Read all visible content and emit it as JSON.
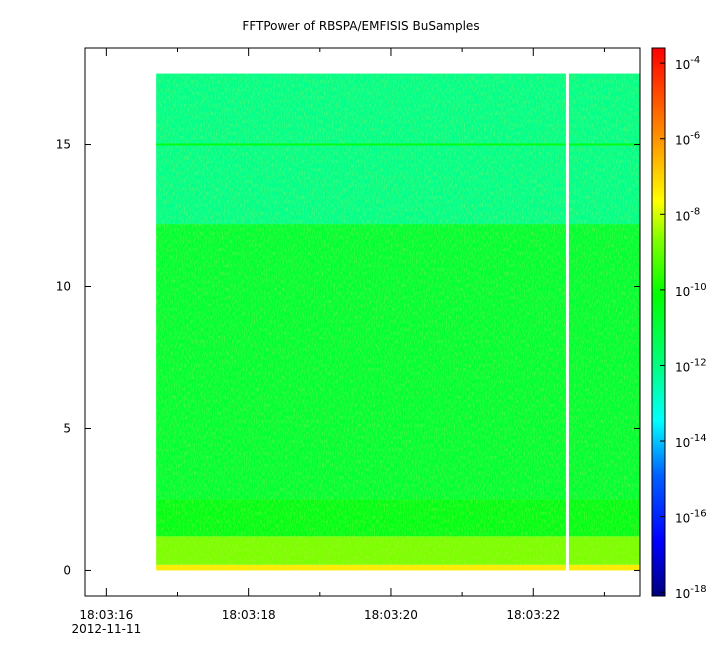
{
  "chart_data": {
    "type": "heatmap",
    "title": "FFTPower of RBSPA/EMFISIS  BuSamples",
    "xlabel": "",
    "ylabel": "",
    "x": {
      "ticks": [
        "18:03:16",
        "18:03:18",
        "18:03:20",
        "18:03:22"
      ],
      "tick_values_s": [
        16,
        18,
        20,
        22
      ],
      "minor_tick_values_s": [
        17,
        19,
        21,
        23
      ],
      "date_label": "2012-11-11",
      "range_s": [
        15.7,
        23.5
      ],
      "data_range_s": [
        16.7,
        23.5
      ],
      "gap_s": 22.48
    },
    "y": {
      "ticks": [
        "0",
        "5",
        "10",
        "15"
      ],
      "tick_values": [
        0,
        5,
        10,
        15
      ],
      "range": [
        -0.9,
        18.4
      ],
      "data_range": [
        0,
        17.5
      ]
    },
    "colorbar": {
      "scale": "log",
      "ticks": [
        {
          "base": "10",
          "exp": "-4"
        },
        {
          "base": "10",
          "exp": "-6"
        },
        {
          "base": "10",
          "exp": "-8"
        },
        {
          "base": "10",
          "exp": "-10"
        },
        {
          "base": "10",
          "exp": "-12"
        },
        {
          "base": "10",
          "exp": "-14"
        },
        {
          "base": "10",
          "exp": "-16"
        },
        {
          "base": "10",
          "exp": "-18"
        }
      ],
      "tick_exponents": [
        -4,
        -6,
        -8,
        -10,
        -12,
        -14,
        -16,
        -18
      ],
      "range_exp": [
        -18.1,
        -3.6
      ],
      "colormap": [
        "#00007f",
        "#0000ff",
        "#00bfff",
        "#00ffff",
        "#00ff80",
        "#00ff00",
        "#80ff00",
        "#ffff00",
        "#ffa000",
        "#ff0000"
      ]
    },
    "bands": [
      {
        "y_range": [
          0,
          0.2
        ],
        "log10_power": -6.5
      },
      {
        "y_range": [
          0.2,
          1.2
        ],
        "log10_power": -8.5
      },
      {
        "y_range": [
          1.2,
          2.5
        ],
        "log10_power": -10.3
      },
      {
        "y_range": [
          2.5,
          12.2
        ],
        "log10_power": -10.7
      },
      {
        "y_range": [
          12.2,
          17.5
        ],
        "log10_power": -11.8
      }
    ],
    "line_feature": {
      "y": 15,
      "log10_power": -10.3
    },
    "grid": false
  }
}
